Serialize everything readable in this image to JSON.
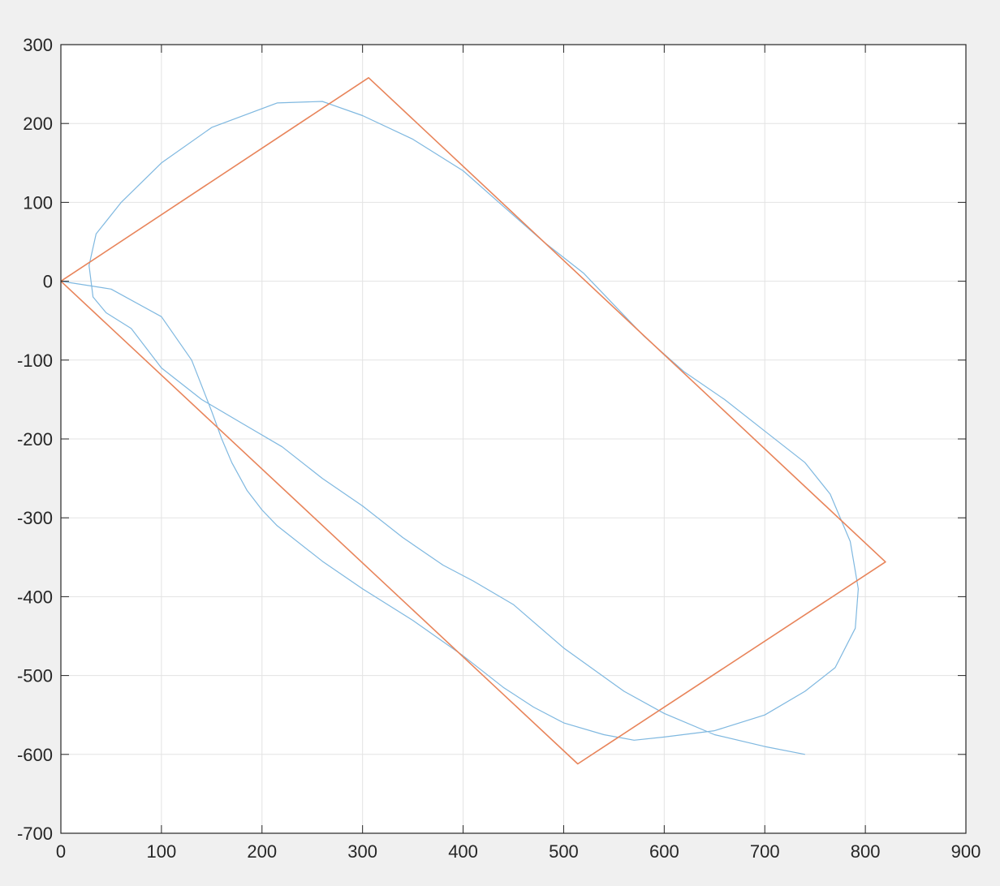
{
  "chart_data": {
    "type": "line",
    "title": "",
    "xlabel": "",
    "ylabel": "",
    "xlim": [
      0,
      900
    ],
    "ylim": [
      -700,
      300
    ],
    "xticks": [
      0,
      100,
      200,
      300,
      400,
      500,
      600,
      700,
      800,
      900
    ],
    "yticks": [
      300,
      200,
      100,
      0,
      -100,
      -200,
      -300,
      -400,
      -500,
      -600,
      -700
    ],
    "xtick_labels": [
      "0",
      "100",
      "200",
      "300",
      "400",
      "500",
      "600",
      "700",
      "800",
      "900"
    ],
    "ytick_labels": [
      "300",
      "200",
      "100",
      "0",
      "-100",
      "-200",
      "-300",
      "-400",
      "-500",
      "-600",
      "-700"
    ],
    "grid": true,
    "legend": "none",
    "series": [
      {
        "color": "#7fb8e0",
        "x": [
          0,
          50,
          100,
          130,
          150,
          160,
          170,
          185,
          200,
          215,
          260,
          300,
          350,
          400,
          440,
          470,
          500,
          540,
          570,
          600,
          650,
          700,
          740,
          770,
          790,
          793,
          785,
          765,
          740,
          700,
          660,
          620,
          580,
          550,
          520,
          480,
          440,
          400,
          350,
          300,
          260,
          215,
          150,
          100,
          60,
          35,
          28,
          32,
          45,
          70,
          100,
          140,
          180,
          220,
          260,
          300,
          340,
          380,
          410,
          450,
          500,
          560,
          600,
          650,
          700,
          740
        ],
        "y": [
          0,
          -10,
          -45,
          -100,
          -165,
          -200,
          -230,
          -265,
          -290,
          -310,
          -355,
          -390,
          -430,
          -475,
          -515,
          -540,
          -560,
          -575,
          -582,
          -578,
          -570,
          -550,
          -520,
          -490,
          -440,
          -390,
          -330,
          -270,
          -230,
          -190,
          -150,
          -115,
          -70,
          -30,
          10,
          50,
          95,
          140,
          180,
          210,
          228,
          226,
          195,
          150,
          100,
          60,
          20,
          -20,
          -40,
          -60,
          -110,
          -150,
          -180,
          -210,
          -250,
          -285,
          -325,
          -360,
          -380,
          -410,
          -465,
          -520,
          -548,
          -575,
          -590,
          -600
        ]
      },
      {
        "color": "#e8845a",
        "x": [
          0,
          306,
          820,
          514,
          0
        ],
        "y": [
          0,
          258,
          -356,
          -612,
          0
        ]
      }
    ]
  }
}
